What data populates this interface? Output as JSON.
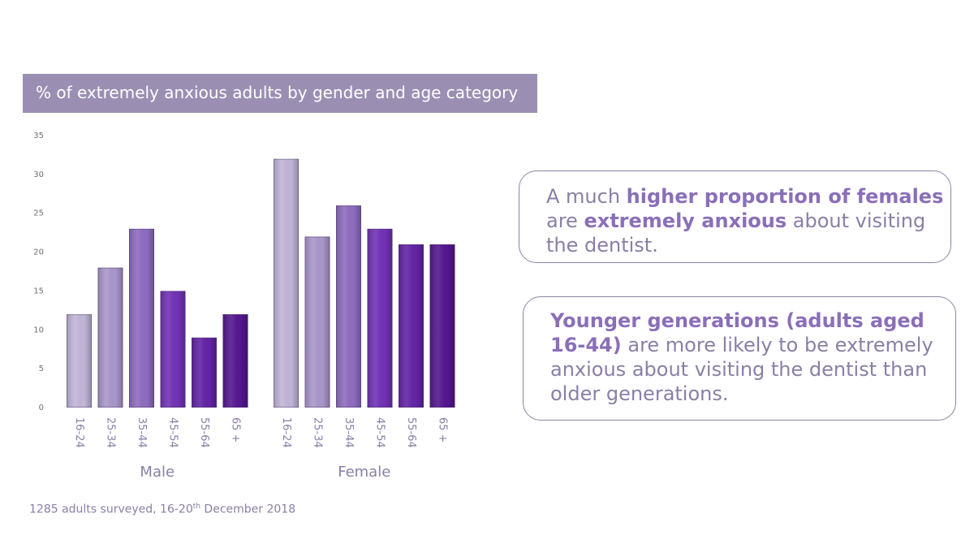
{
  "chart_data": {
    "type": "bar",
    "title": "% of extremely anxious adults by gender and age category",
    "ylim": [
      0,
      35
    ],
    "yticks": [
      0,
      5,
      10,
      15,
      20,
      25,
      30,
      35
    ],
    "grid": false,
    "groups": [
      {
        "name": "Male",
        "categories": [
          "16-24",
          "25-34",
          "35-44",
          "45-54",
          "55-64",
          "65 +"
        ],
        "values": [
          12,
          18,
          23,
          15,
          9,
          12
        ]
      },
      {
        "name": "Female",
        "categories": [
          "16-24",
          "25-34",
          "35-44",
          "45-54",
          "55-64",
          "65 +"
        ],
        "values": [
          32,
          22,
          26,
          23,
          21,
          21
        ]
      }
    ],
    "colors": [
      "#c2b6d8",
      "#aa97cb",
      "#8f6cc0",
      "#7232b6",
      "#6424a6",
      "#55178f"
    ]
  },
  "callouts": [
    {
      "parts": [
        {
          "text": "A much ",
          "bold": false
        },
        {
          "text": "higher proportion of females",
          "bold": true
        },
        {
          "text": " are ",
          "bold": false
        },
        {
          "text": "extremely anxious",
          "bold": true
        },
        {
          "text": " about visiting the dentist.",
          "bold": false
        }
      ]
    },
    {
      "parts": [
        {
          "text": "Younger generations (adults aged 16-44)",
          "bold": true
        },
        {
          "text": " are more likely to be extremely anxious about visiting the dentist than older generations.",
          "bold": false
        }
      ]
    }
  ],
  "footnote": {
    "prefix": "1285 adults surveyed, 16-20",
    "sup": "th",
    "suffix": " December 2018"
  }
}
